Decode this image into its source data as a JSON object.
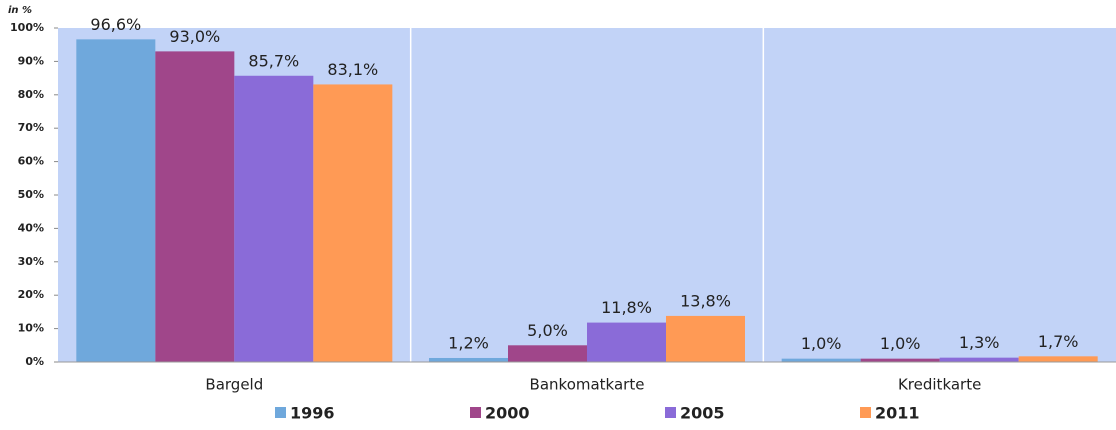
{
  "chart_data": {
    "type": "bar",
    "y_axis_label": "in %",
    "categories": [
      "Bargeld",
      "Bankomatkarte",
      "Kreditkarte"
    ],
    "series": [
      {
        "name": "1996",
        "color": "#6fa8dc",
        "values": [
          96.6,
          1.2,
          1.0
        ],
        "value_labels": [
          "96,6%",
          "1,2%",
          "1,0%"
        ]
      },
      {
        "name": "2000",
        "color": "#a0468a",
        "values": [
          93.0,
          5.0,
          1.0
        ],
        "value_labels": [
          "93,0%",
          "5,0%",
          "1,0%"
        ]
      },
      {
        "name": "2005",
        "color": "#8a6bd8",
        "values": [
          85.7,
          11.8,
          1.3
        ],
        "value_labels": [
          "85,7%",
          "11,8%",
          "1,3%"
        ]
      },
      {
        "name": "2011",
        "color": "#ff9a55",
        "values": [
          83.1,
          13.8,
          1.7
        ],
        "value_labels": [
          "83,1%",
          "13,8%",
          "1,7%"
        ]
      }
    ],
    "ylim": [
      0,
      100
    ],
    "yticks": [
      {
        "value": 0,
        "label": "0%"
      },
      {
        "value": 10,
        "label": "10%"
      },
      {
        "value": 20,
        "label": "20%"
      },
      {
        "value": 30,
        "label": "30%"
      },
      {
        "value": 40,
        "label": "40%"
      },
      {
        "value": 50,
        "label": "50%"
      },
      {
        "value": 60,
        "label": "60%"
      },
      {
        "value": 70,
        "label": "70%"
      },
      {
        "value": 80,
        "label": "80%"
      },
      {
        "value": 90,
        "label": "90%"
      },
      {
        "value": 100,
        "label": "100%"
      }
    ],
    "plot_background": "#c2d3f7",
    "legend": "bottom"
  }
}
